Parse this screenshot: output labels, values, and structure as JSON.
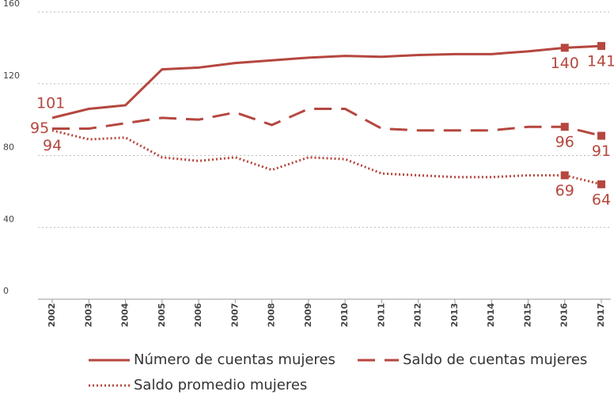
{
  "chart_data": {
    "type": "line",
    "categories": [
      "2002",
      "2003",
      "2004",
      "2005",
      "2006",
      "2007",
      "2008",
      "2009",
      "2010",
      "2011",
      "2012",
      "2013",
      "2014",
      "2015",
      "2016",
      "2017"
    ],
    "series": [
      {
        "name": "Número de cuentas mujeres",
        "color": "#b5473f",
        "style": "solid",
        "values": [
          101,
          106,
          108,
          128,
          129,
          131.5,
          133,
          134.5,
          135.5,
          135,
          136,
          136.5,
          136.5,
          138,
          140,
          141
        ]
      },
      {
        "name": "Saldo de cuentas mujeres",
        "color": "#b5473f",
        "style": "dashed",
        "values": [
          95,
          95,
          98,
          101,
          100,
          104,
          97,
          106,
          106,
          95,
          94,
          94,
          94,
          96,
          96,
          91
        ]
      },
      {
        "name": "Saldo promedio mujeres",
        "color": "#b5473f",
        "style": "dotted",
        "values": [
          94,
          89,
          90,
          79,
          77,
          79,
          72,
          79,
          78,
          70,
          69,
          68,
          68,
          69,
          69,
          64
        ]
      }
    ],
    "ylim": [
      0,
      160
    ],
    "yticks": [
      0,
      40,
      80,
      120,
      160
    ],
    "grid": true
  }
}
